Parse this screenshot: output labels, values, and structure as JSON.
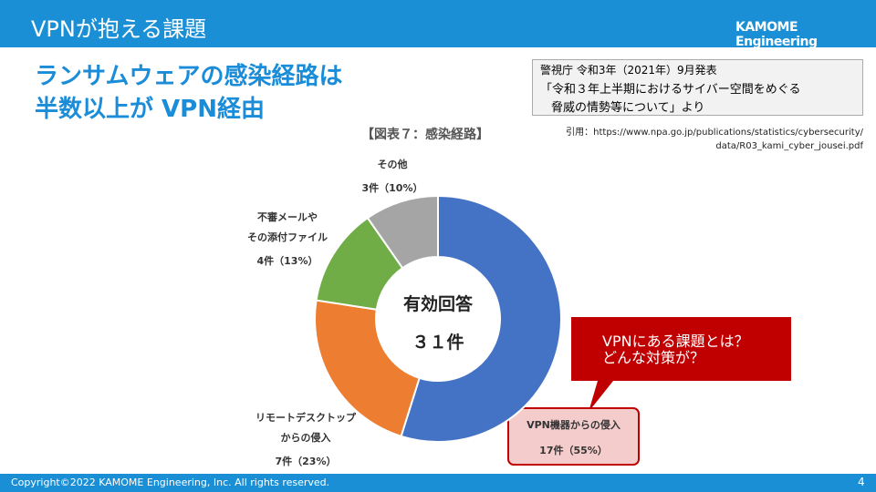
{
  "header": {
    "title": "VPNが抱える課題",
    "logo": "KAMOME Engineering"
  },
  "headline": "ランサムウェアの感染経路は\n半数以上が VPN経由",
  "source_box": {
    "lines": [
      "警視庁 令和3年（2021年）9月発表",
      "「令和３年上半期におけるサイバー空間をめぐる",
      "脅威の情勢等について」より"
    ]
  },
  "citation": "引用：https://www.npa.go.jp/publications/statistics/cybersecurity/\ndata/R03_kami_cyber_jousei.pdf",
  "callout": "VPNにある課題とは？\nどんな対策が？",
  "chart_data": {
    "type": "donut",
    "title": "【図表７：感染経路】",
    "center_text": [
      "有効回答",
      "３１件"
    ],
    "categories": [
      "VPN機器からの侵入",
      "リモートデスクトップ\nからの侵入",
      "不審メールや\nその添付ファイル",
      "その他"
    ],
    "values": [
      17,
      7,
      4,
      3
    ],
    "value_labels": [
      "17件（55%）",
      "7件（23%）",
      "4件（13%）",
      "3件（10%）"
    ],
    "colors": [
      "#4472c4",
      "#ed7d31",
      "#70ad47",
      "#a5a5a5"
    ]
  },
  "footer": {
    "copyright": "Copyright©2022 KAMOME Engineering, Inc. All rights reserved.",
    "page": "4"
  }
}
